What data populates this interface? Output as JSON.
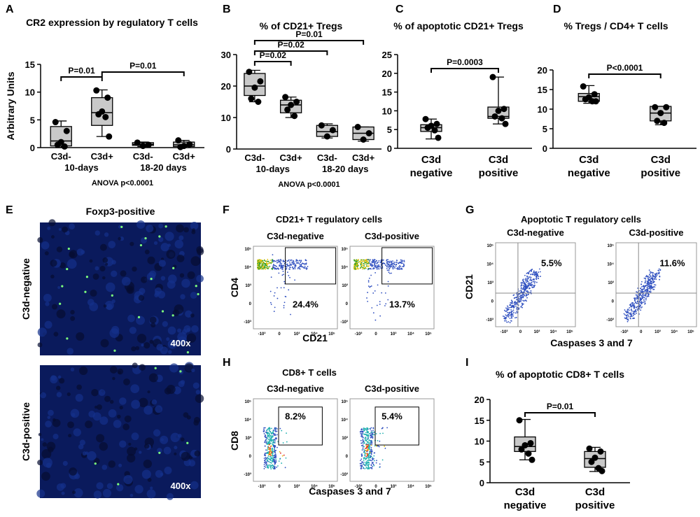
{
  "chart_data": [
    {
      "type": "box",
      "title": "CR2 expression by regulatory T cells",
      "ylabel": "Arbitrary Units",
      "categories": [
        "C3d-",
        "C3d+",
        "C3d-",
        "C3d+"
      ],
      "group_labels": [
        "10-days",
        "18-20 days"
      ],
      "note": "ANOVA p<0.0001",
      "ylim": [
        0,
        15
      ],
      "yticks": [
        0,
        5,
        10,
        15
      ],
      "boxes": [
        {
          "min": 0,
          "q1": 0.3,
          "median": 1.2,
          "q3": 3.8,
          "max": 4.8,
          "points": [
            4.6,
            3.0,
            1.0,
            0.5,
            0.2
          ]
        },
        {
          "min": 2.0,
          "q1": 4.0,
          "median": 6.3,
          "q3": 9.0,
          "max": 10.4,
          "points": [
            10.3,
            9.0,
            6.5,
            6.0,
            5.5,
            2.0
          ]
        },
        {
          "min": 0.2,
          "q1": 0.4,
          "median": 0.6,
          "q3": 0.9,
          "max": 1.0,
          "points": [
            0.9,
            0.5,
            0.3
          ]
        },
        {
          "min": 0,
          "q1": 0.2,
          "median": 0.5,
          "q3": 1.0,
          "max": 1.3,
          "points": [
            1.3,
            0.6,
            0.3,
            0.1
          ]
        }
      ],
      "comparisons": [
        "P=0.01",
        "P=0.01"
      ]
    },
    {
      "type": "box",
      "title": "% of CD21+ Tregs",
      "categories": [
        "C3d-",
        "C3d+",
        "C3d-",
        "C3d+"
      ],
      "group_labels": [
        "10-days",
        "18-20 days"
      ],
      "note": "ANOVA p<0.0001",
      "ylim": [
        0,
        30
      ],
      "yticks": [
        0,
        10,
        20,
        30
      ],
      "boxes": [
        {
          "min": 15,
          "q1": 17,
          "median": 20,
          "q3": 24,
          "max": 25,
          "points": [
            24.5,
            21.5,
            19.5,
            16,
            15
          ]
        },
        {
          "min": 10,
          "q1": 11.5,
          "median": 14,
          "q3": 15.5,
          "max": 16.5,
          "points": [
            16.5,
            15,
            14,
            12.5,
            10.5
          ]
        },
        {
          "min": 3.5,
          "q1": 4,
          "median": 5.5,
          "q3": 7.5,
          "max": 8,
          "points": [
            7.5,
            6,
            4
          ]
        },
        {
          "min": 2.5,
          "q1": 3,
          "median": 5,
          "q3": 7,
          "max": 7,
          "points": [
            7,
            5,
            3
          ]
        }
      ],
      "comparisons": [
        "P=0.02",
        "P=0.02",
        "P=0.01"
      ]
    },
    {
      "type": "box",
      "title": "% of apoptotic CD21+ Tregs",
      "categories": [
        [
          "C3d",
          "negative"
        ],
        [
          "C3d",
          "positive"
        ]
      ],
      "ylim": [
        0,
        25
      ],
      "yticks": [
        0,
        5,
        10,
        15,
        20,
        25
      ],
      "boxes": [
        {
          "min": 2.5,
          "q1": 4.5,
          "median": 5.5,
          "q3": 6.3,
          "max": 7.8,
          "points": [
            7.8,
            6.5,
            6,
            5.5,
            4.8,
            2.8
          ]
        },
        {
          "min": 6.5,
          "q1": 8,
          "median": 8.5,
          "q3": 11,
          "max": 19,
          "points": [
            19,
            10.5,
            10,
            8.5,
            8,
            6.5
          ]
        }
      ],
      "comparisons": [
        "P=0.0003"
      ]
    },
    {
      "type": "box",
      "title": "% Tregs / CD4+ T cells",
      "categories": [
        [
          "C3d",
          "negative"
        ],
        [
          "C3d",
          "positive"
        ]
      ],
      "ylim": [
        0,
        20
      ],
      "yticks": [
        0,
        5,
        10,
        15,
        20
      ],
      "boxes": [
        {
          "min": 11.5,
          "q1": 12,
          "median": 13.2,
          "q3": 14,
          "max": 16,
          "points": [
            15.8,
            13.8,
            13,
            12.5,
            12,
            12
          ]
        },
        {
          "min": 6,
          "q1": 7,
          "median": 9,
          "q3": 10.7,
          "max": 10.7,
          "points": [
            10.5,
            10.5,
            9,
            7,
            6.5
          ]
        }
      ],
      "comparisons": [
        "P<0.0001"
      ]
    },
    {
      "type": "box",
      "title": "% of apoptotic CD8+  T cells",
      "categories": [
        [
          "C3d",
          "negative"
        ],
        [
          "C3d",
          "positive"
        ]
      ],
      "ylim": [
        0,
        20
      ],
      "yticks": [
        0,
        5,
        10,
        15,
        20
      ],
      "boxes": [
        {
          "min": 5.5,
          "q1": 7.5,
          "median": 8.7,
          "q3": 11,
          "max": 15.2,
          "points": [
            15,
            9.5,
            9,
            8,
            7,
            5.5
          ]
        },
        {
          "min": 2.7,
          "q1": 3.7,
          "median": 5.8,
          "q3": 7.5,
          "max": 8.5,
          "points": [
            8.2,
            7.5,
            6,
            5,
            3.5,
            2.8
          ]
        }
      ],
      "comparisons": [
        "P=0.01"
      ]
    }
  ],
  "panel_labels": [
    "A",
    "B",
    "C",
    "D",
    "E",
    "F",
    "G",
    "H",
    "I"
  ],
  "panel_e": {
    "title": "Foxp3-positive",
    "rows": [
      "C3d-negative",
      "C3d-positive"
    ],
    "magnification": "400x"
  },
  "flow_yticks": [
    "10⁵",
    "10⁴",
    "10³",
    "0",
    "-10³"
  ],
  "flow_xticks": [
    "-10³",
    "0",
    "10³",
    "10⁴",
    "10⁵"
  ],
  "panel_f": {
    "title": "CD21+ T regulatory cells",
    "ylabel": "CD4",
    "xlabel": "CD21",
    "plots": [
      {
        "label": "C3d-negative",
        "gate": "24.4%"
      },
      {
        "label": "C3d-positive",
        "gate": "13.7%"
      }
    ]
  },
  "panel_g": {
    "title": "Apoptotic T regulatory cells",
    "ylabel": "CD21",
    "xlabel": "Caspases 3 and 7",
    "plots": [
      {
        "label": "C3d-negative",
        "gate": "5.5%"
      },
      {
        "label": "C3d-positive",
        "gate": "11.6%"
      }
    ]
  },
  "panel_h": {
    "title": "CD8+ T cells",
    "ylabel": "CD8",
    "xlabel": "Caspases 3 and 7",
    "plots": [
      {
        "label": "C3d-negative",
        "gate": "8.2%"
      },
      {
        "label": "C3d-positive",
        "gate": "5.4%"
      }
    ]
  }
}
